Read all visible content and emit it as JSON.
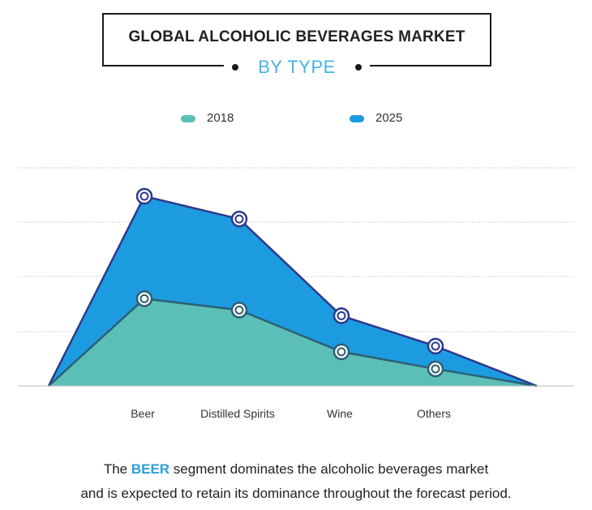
{
  "title": "GLOBAL ALCOHOLIC BEVERAGES MARKET",
  "subtitle": "BY TYPE",
  "colors": {
    "s2018_fill": "#5bbfb8",
    "s2018_line": "#2c5f73",
    "s2025_fill": "#1d9be0",
    "s2025_line": "#2b3a8c",
    "grid": "#cfcfcf"
  },
  "chart_data": {
    "type": "area",
    "categories": [
      "Beer",
      "Distilled Spirits",
      "Wine",
      "Others"
    ],
    "ylim": [
      0,
      100
    ],
    "grid": true,
    "legend": "top-center",
    "series": [
      {
        "name": "2018",
        "values": [
          46,
          40,
          18,
          9
        ]
      },
      {
        "name": "2025",
        "values": [
          100,
          88,
          37,
          21
        ]
      }
    ]
  },
  "footnote": {
    "pre": "The ",
    "highlight": "BEER",
    "post": " segment dominates the alcoholic beverages market",
    "line2": "and is expected to retain its dominance throughout the forecast period."
  }
}
